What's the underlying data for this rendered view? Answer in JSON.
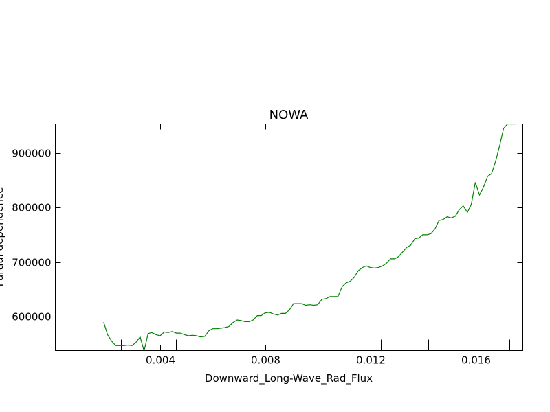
{
  "chart_data": {
    "type": "line",
    "title": "NOWA",
    "xlabel": "Downward_Long-Wave_Rad_Flux",
    "ylabel": "Partial dependence",
    "xlim": [
      0.0,
      0.0178
    ],
    "ylim": [
      538000,
      953000
    ],
    "xticks": [
      0.004,
      0.008,
      0.012,
      0.016
    ],
    "xtick_labels": [
      "0.004",
      "0.008",
      "0.012",
      "0.016"
    ],
    "yticks": [
      600000,
      700000,
      800000,
      900000
    ],
    "ytick_labels": [
      "600000",
      "700000",
      "800000",
      "900000"
    ],
    "minor_xticks": [
      0.0025,
      0.0037,
      0.0046,
      0.0063,
      0.0083,
      0.0104,
      0.0124,
      0.0142,
      0.0156,
      0.0173
    ],
    "grid": false,
    "legend": "none",
    "series": [
      {
        "color": "#008000",
        "x": [
          0.00184,
          0.00199,
          0.00215,
          0.0023,
          0.00246,
          0.00261,
          0.00277,
          0.00292,
          0.00307,
          0.00323,
          0.00338,
          0.00353,
          0.00367,
          0.00384,
          0.00399,
          0.00415,
          0.0043,
          0.00445,
          0.00461,
          0.00476,
          0.00492,
          0.00507,
          0.00522,
          0.00538,
          0.00553,
          0.00569,
          0.00584,
          0.00599,
          0.00615,
          0.0063,
          0.00646,
          0.00661,
          0.00676,
          0.00692,
          0.00707,
          0.00722,
          0.00738,
          0.00753,
          0.00769,
          0.00784,
          0.00799,
          0.00815,
          0.0083,
          0.00846,
          0.00861,
          0.00876,
          0.00892,
          0.00907,
          0.00922,
          0.00938,
          0.00953,
          0.00969,
          0.00984,
          0.00999,
          0.01015,
          0.0103,
          0.01046,
          0.01061,
          0.01076,
          0.01092,
          0.01107,
          0.01123,
          0.01138,
          0.01153,
          0.01169,
          0.01184,
          0.01199,
          0.01215,
          0.0123,
          0.01246,
          0.01261,
          0.01276,
          0.01292,
          0.01307,
          0.01323,
          0.01338,
          0.01353,
          0.01369,
          0.01384,
          0.01399,
          0.01415,
          0.0143,
          0.01446,
          0.01461,
          0.01476,
          0.01492,
          0.01507,
          0.01523,
          0.01538,
          0.01553,
          0.01569,
          0.01584,
          0.01599,
          0.01615,
          0.0163,
          0.01646,
          0.01661,
          0.01676,
          0.01692,
          0.01707,
          0.01722,
          0.01738,
          0.01753
        ],
        "y": [
          590000,
          567000,
          555000,
          547000,
          547000,
          547000,
          548000,
          547000,
          553000,
          563000,
          537000,
          569000,
          571000,
          567000,
          565000,
          572000,
          571000,
          573000,
          570000,
          570000,
          567000,
          565000,
          566000,
          565000,
          563000,
          564000,
          574000,
          578000,
          578000,
          579000,
          580000,
          582000,
          589000,
          594000,
          593000,
          591000,
          591000,
          594000,
          602000,
          602000,
          607000,
          608000,
          605000,
          603000,
          606000,
          606000,
          613000,
          624000,
          624000,
          624000,
          621000,
          622000,
          621000,
          622000,
          632000,
          633000,
          637000,
          637000,
          637000,
          655000,
          662000,
          665000,
          672000,
          684000,
          690000,
          693000,
          690000,
          689000,
          690000,
          693000,
          698000,
          706000,
          706000,
          710000,
          719000,
          727000,
          731000,
          743000,
          744000,
          750000,
          750000,
          752000,
          761000,
          776000,
          778000,
          783000,
          781000,
          784000,
          796000,
          803000,
          791000,
          806000,
          846000,
          823000,
          837000,
          857000,
          862000,
          884000,
          914000,
          945000,
          953000,
          953000,
          953000
        ]
      }
    ]
  }
}
